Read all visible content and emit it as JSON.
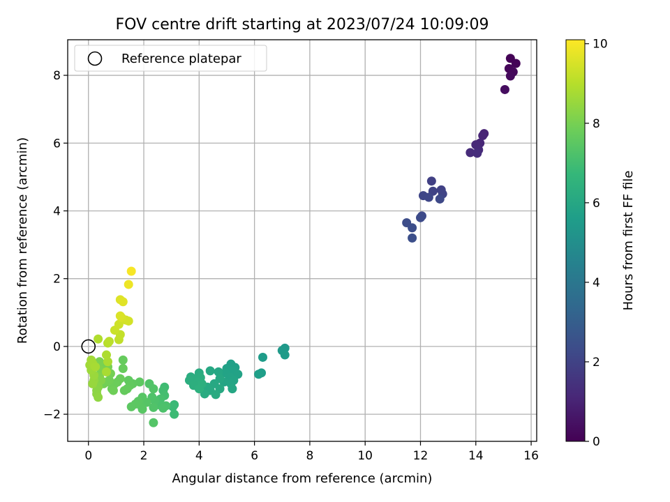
{
  "chart_data": {
    "type": "scatter",
    "title": "FOV centre drift starting at 2023/07/24 10:09:09",
    "xlabel": "Angular distance from reference (arcmin)",
    "ylabel": "Rotation from reference (arcmin)",
    "xlim": [
      -0.75,
      16.2
    ],
    "ylim": [
      -2.8,
      9.05
    ],
    "xticks": [
      0,
      2,
      4,
      6,
      8,
      10,
      12,
      14,
      16
    ],
    "yticks": [
      -2,
      0,
      2,
      4,
      6,
      8
    ],
    "grid": true,
    "legend": {
      "position": "top-left",
      "entries": [
        {
          "label": "Reference platepar",
          "marker": "open-circle"
        }
      ]
    },
    "reference_point": {
      "x": 0,
      "y": 0
    },
    "colorbar": {
      "label": "Hours from first FF file",
      "colormap": "viridis",
      "range": [
        0,
        10.1
      ],
      "ticks": [
        0,
        2,
        4,
        6,
        8,
        10
      ]
    },
    "points": [
      {
        "x": 15.25,
        "y": 8.5,
        "c": 0.05
      },
      {
        "x": 15.45,
        "y": 8.35,
        "c": 0.1
      },
      {
        "x": 15.2,
        "y": 8.2,
        "c": 0.15
      },
      {
        "x": 15.35,
        "y": 8.1,
        "c": 0.2
      },
      {
        "x": 15.25,
        "y": 7.98,
        "c": 0.25
      },
      {
        "x": 15.05,
        "y": 7.58,
        "c": 0.35
      },
      {
        "x": 14.3,
        "y": 6.28,
        "c": 1.0
      },
      {
        "x": 14.25,
        "y": 6.22,
        "c": 1.05
      },
      {
        "x": 14.15,
        "y": 6.0,
        "c": 1.1
      },
      {
        "x": 14.0,
        "y": 5.95,
        "c": 1.15
      },
      {
        "x": 14.1,
        "y": 5.8,
        "c": 1.2
      },
      {
        "x": 13.8,
        "y": 5.72,
        "c": 1.25
      },
      {
        "x": 14.05,
        "y": 5.7,
        "c": 1.3
      },
      {
        "x": 12.4,
        "y": 4.88,
        "c": 1.9
      },
      {
        "x": 12.75,
        "y": 4.62,
        "c": 1.95
      },
      {
        "x": 12.45,
        "y": 4.58,
        "c": 2.0
      },
      {
        "x": 12.8,
        "y": 4.5,
        "c": 2.05
      },
      {
        "x": 12.1,
        "y": 4.45,
        "c": 2.1
      },
      {
        "x": 12.3,
        "y": 4.4,
        "c": 2.15
      },
      {
        "x": 12.7,
        "y": 4.35,
        "c": 2.2
      },
      {
        "x": 12.05,
        "y": 3.85,
        "c": 2.25
      },
      {
        "x": 12.0,
        "y": 3.8,
        "c": 2.3
      },
      {
        "x": 11.5,
        "y": 3.65,
        "c": 2.35
      },
      {
        "x": 11.7,
        "y": 3.5,
        "c": 2.4
      },
      {
        "x": 11.7,
        "y": 3.2,
        "c": 2.45
      },
      {
        "x": 7.1,
        "y": -0.05,
        "c": 5.4
      },
      {
        "x": 7.0,
        "y": -0.12,
        "c": 5.45
      },
      {
        "x": 7.1,
        "y": -0.25,
        "c": 5.5
      },
      {
        "x": 6.3,
        "y": -0.32,
        "c": 5.55
      },
      {
        "x": 6.25,
        "y": -0.78,
        "c": 5.6
      },
      {
        "x": 6.15,
        "y": -0.82,
        "c": 5.65
      },
      {
        "x": 5.15,
        "y": -0.52,
        "c": 5.7
      },
      {
        "x": 5.3,
        "y": -0.62,
        "c": 5.72
      },
      {
        "x": 5.0,
        "y": -0.65,
        "c": 5.75
      },
      {
        "x": 5.2,
        "y": -0.72,
        "c": 5.78
      },
      {
        "x": 5.4,
        "y": -0.82,
        "c": 5.8
      },
      {
        "x": 4.95,
        "y": -0.78,
        "c": 5.82
      },
      {
        "x": 5.1,
        "y": -0.9,
        "c": 5.85
      },
      {
        "x": 5.25,
        "y": -1.0,
        "c": 5.88
      },
      {
        "x": 4.9,
        "y": -1.05,
        "c": 5.9
      },
      {
        "x": 5.15,
        "y": -1.1,
        "c": 5.92
      },
      {
        "x": 5.2,
        "y": -1.25,
        "c": 5.95
      },
      {
        "x": 4.7,
        "y": -0.75,
        "c": 5.98
      },
      {
        "x": 4.4,
        "y": -0.72,
        "c": 6.0
      },
      {
        "x": 4.75,
        "y": -0.95,
        "c": 6.02
      },
      {
        "x": 4.55,
        "y": -1.1,
        "c": 6.05
      },
      {
        "x": 4.75,
        "y": -1.25,
        "c": 6.08
      },
      {
        "x": 4.3,
        "y": -1.2,
        "c": 6.1
      },
      {
        "x": 4.4,
        "y": -1.3,
        "c": 6.12
      },
      {
        "x": 4.6,
        "y": -1.42,
        "c": 6.15
      },
      {
        "x": 4.2,
        "y": -1.4,
        "c": 6.18
      },
      {
        "x": 4.0,
        "y": -0.78,
        "c": 6.2
      },
      {
        "x": 3.7,
        "y": -0.9,
        "c": 6.22
      },
      {
        "x": 3.85,
        "y": -0.95,
        "c": 6.25
      },
      {
        "x": 4.05,
        "y": -0.92,
        "c": 6.28
      },
      {
        "x": 3.65,
        "y": -1.0,
        "c": 6.3
      },
      {
        "x": 3.95,
        "y": -1.05,
        "c": 6.32
      },
      {
        "x": 3.8,
        "y": -1.15,
        "c": 6.35
      },
      {
        "x": 4.1,
        "y": -1.1,
        "c": 6.38
      },
      {
        "x": 4.0,
        "y": -1.25,
        "c": 6.4
      },
      {
        "x": 3.1,
        "y": -1.72,
        "c": 6.8
      },
      {
        "x": 3.05,
        "y": -1.78,
        "c": 6.85
      },
      {
        "x": 3.1,
        "y": -2.0,
        "c": 6.9
      },
      {
        "x": 2.75,
        "y": -1.2,
        "c": 6.95
      },
      {
        "x": 2.7,
        "y": -1.3,
        "c": 7.0
      },
      {
        "x": 2.75,
        "y": -1.45,
        "c": 7.05
      },
      {
        "x": 2.6,
        "y": -1.55,
        "c": 7.1
      },
      {
        "x": 2.55,
        "y": -1.72,
        "c": 7.15
      },
      {
        "x": 2.8,
        "y": -1.75,
        "c": 7.18
      },
      {
        "x": 2.7,
        "y": -1.82,
        "c": 7.2
      },
      {
        "x": 2.4,
        "y": -1.6,
        "c": 7.22
      },
      {
        "x": 2.3,
        "y": -1.5,
        "c": 7.25
      },
      {
        "x": 2.35,
        "y": -1.8,
        "c": 7.28
      },
      {
        "x": 2.2,
        "y": -1.1,
        "c": 7.3
      },
      {
        "x": 2.35,
        "y": -1.25,
        "c": 7.32
      },
      {
        "x": 2.35,
        "y": -2.25,
        "c": 7.35
      },
      {
        "x": 2.1,
        "y": -1.65,
        "c": 7.38
      },
      {
        "x": 1.95,
        "y": -1.5,
        "c": 7.4
      },
      {
        "x": 1.9,
        "y": -1.75,
        "c": 7.42
      },
      {
        "x": 1.95,
        "y": -1.85,
        "c": 7.45
      },
      {
        "x": 1.8,
        "y": -1.62,
        "c": 7.48
      },
      {
        "x": 1.7,
        "y": -1.7,
        "c": 7.5
      },
      {
        "x": 1.55,
        "y": -1.78,
        "c": 7.52
      },
      {
        "x": 1.85,
        "y": -1.05,
        "c": 7.55
      },
      {
        "x": 1.6,
        "y": -1.1,
        "c": 7.58
      },
      {
        "x": 1.45,
        "y": -1.0,
        "c": 7.6
      },
      {
        "x": 1.5,
        "y": -1.15,
        "c": 7.62
      },
      {
        "x": 1.4,
        "y": -1.25,
        "c": 7.65
      },
      {
        "x": 1.3,
        "y": -1.3,
        "c": 7.68
      },
      {
        "x": 1.25,
        "y": -0.4,
        "c": 7.7
      },
      {
        "x": 1.25,
        "y": -0.65,
        "c": 7.72
      },
      {
        "x": 1.15,
        "y": -0.95,
        "c": 7.75
      },
      {
        "x": 1.05,
        "y": -1.05,
        "c": 7.78
      },
      {
        "x": 0.95,
        "y": -1.1,
        "c": 7.8
      },
      {
        "x": 0.85,
        "y": -1.25,
        "c": 7.82
      },
      {
        "x": 0.9,
        "y": -1.3,
        "c": 7.85
      },
      {
        "x": 0.75,
        "y": -1.0,
        "c": 7.88
      },
      {
        "x": 0.65,
        "y": -1.05,
        "c": 7.9
      },
      {
        "x": 0.55,
        "y": -1.1,
        "c": 7.92
      },
      {
        "x": 0.8,
        "y": -0.8,
        "c": 7.95
      },
      {
        "x": 0.7,
        "y": -0.6,
        "c": 7.98
      },
      {
        "x": 0.6,
        "y": -0.55,
        "c": 8.0
      },
      {
        "x": 0.4,
        "y": -0.45,
        "c": 8.05
      },
      {
        "x": 0.45,
        "y": -0.7,
        "c": 8.1
      },
      {
        "x": 0.4,
        "y": -0.9,
        "c": 8.15
      },
      {
        "x": 0.45,
        "y": -1.0,
        "c": 8.2
      },
      {
        "x": 0.35,
        "y": -1.2,
        "c": 8.25
      },
      {
        "x": 0.3,
        "y": -1.3,
        "c": 8.3
      },
      {
        "x": 0.3,
        "y": -1.4,
        "c": 8.35
      },
      {
        "x": 0.35,
        "y": -1.5,
        "c": 8.4
      },
      {
        "x": 0.2,
        "y": -1.0,
        "c": 8.45
      },
      {
        "x": 0.15,
        "y": -1.1,
        "c": 8.5
      },
      {
        "x": 0.2,
        "y": -0.85,
        "c": 8.55
      },
      {
        "x": 0.1,
        "y": -0.7,
        "c": 8.6
      },
      {
        "x": 0.05,
        "y": -0.55,
        "c": 8.65
      },
      {
        "x": 0.1,
        "y": -0.4,
        "c": 8.7
      },
      {
        "x": 0.15,
        "y": -0.5,
        "c": 8.72
      },
      {
        "x": 0.25,
        "y": -0.6,
        "c": 8.75
      },
      {
        "x": 0.65,
        "y": -0.75,
        "c": 8.78
      },
      {
        "x": 0.7,
        "y": -0.45,
        "c": 8.8
      },
      {
        "x": 0.65,
        "y": -0.25,
        "c": 8.85
      },
      {
        "x": 0.35,
        "y": 0.22,
        "c": 8.9
      },
      {
        "x": 0.7,
        "y": 0.1,
        "c": 9.0
      },
      {
        "x": 0.75,
        "y": 0.15,
        "c": 9.05
      },
      {
        "x": 1.1,
        "y": 0.2,
        "c": 9.15
      },
      {
        "x": 1.15,
        "y": 0.35,
        "c": 9.2
      },
      {
        "x": 0.95,
        "y": 0.48,
        "c": 9.3
      },
      {
        "x": 1.1,
        "y": 0.65,
        "c": 9.35
      },
      {
        "x": 1.35,
        "y": 0.78,
        "c": 9.4
      },
      {
        "x": 1.45,
        "y": 0.75,
        "c": 9.45
      },
      {
        "x": 1.2,
        "y": 0.85,
        "c": 9.5
      },
      {
        "x": 1.15,
        "y": 0.9,
        "c": 9.55
      },
      {
        "x": 1.15,
        "y": 1.38,
        "c": 9.6
      },
      {
        "x": 1.25,
        "y": 1.32,
        "c": 9.65
      },
      {
        "x": 1.45,
        "y": 1.83,
        "c": 9.85
      },
      {
        "x": 1.55,
        "y": 2.22,
        "c": 10.0
      }
    ]
  }
}
